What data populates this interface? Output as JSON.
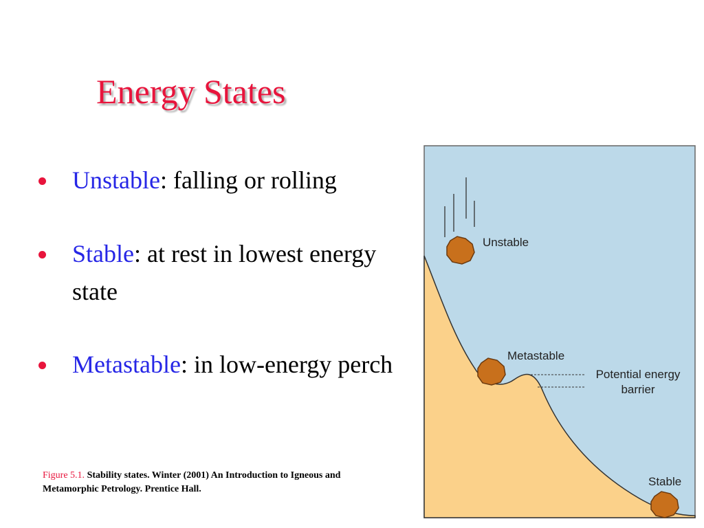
{
  "title": "Energy States",
  "bullets": [
    {
      "term": "Unstable",
      "text": ": falling or rolling"
    },
    {
      "term": "Stable",
      "text": ": at rest in lowest energy state"
    },
    {
      "term": "Metastable",
      "text": ": in low-energy perch"
    }
  ],
  "figure": {
    "labels": {
      "unstable": "Unstable",
      "metastable": "Metastable",
      "barrier": [
        "Potential energy",
        "barrier"
      ],
      "stable": "Stable"
    }
  },
  "caption": {
    "label": "Figure 5.1.",
    "text": "Stability states.  Winter (2001) An Introduction to Igneous and Metamorphic Petrology. Prentice Hall."
  }
}
